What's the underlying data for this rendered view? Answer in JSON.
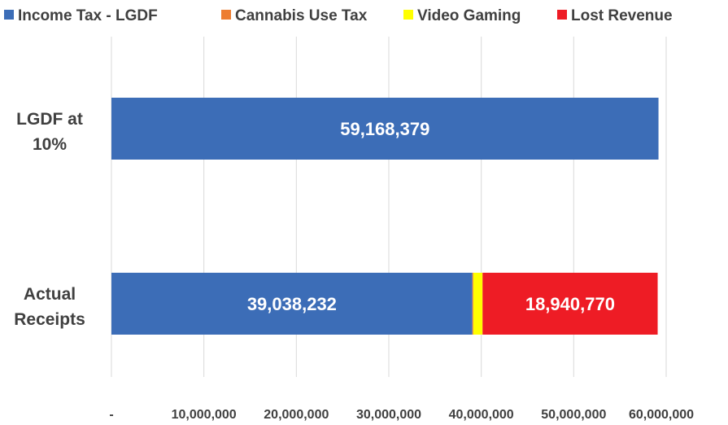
{
  "chart_data": {
    "type": "bar",
    "orientation": "horizontal",
    "stacked": true,
    "title": "",
    "xlabel": "",
    "ylabel": "",
    "xlim": [
      0,
      60000000
    ],
    "grid": "vertical",
    "legend_position": "top",
    "categories": [
      "LGDF at 10%",
      "Actual Receipts"
    ],
    "category_lines": [
      [
        "LGDF at",
        "10%"
      ],
      [
        "Actual",
        "Receipts"
      ]
    ],
    "x_ticks": [
      0,
      10000000,
      20000000,
      30000000,
      40000000,
      50000000,
      60000000
    ],
    "x_tick_labels": [
      "-",
      "10,000,000",
      "20,000,000",
      "30,000,000",
      "40,000,000",
      "50,000,000",
      "60,000,000"
    ],
    "series": [
      {
        "name": "Income Tax - LGDF",
        "color": "#3C6DB7",
        "values": [
          59168379,
          39038232
        ],
        "labels": [
          "59,168,379",
          "39,038,232"
        ]
      },
      {
        "name": "Cannabis Use Tax",
        "color": "#ED7D31",
        "values": [
          0,
          100000
        ],
        "labels": [
          "",
          ""
        ]
      },
      {
        "name": "Video Gaming",
        "color": "#FFFF00",
        "values": [
          0,
          1000000
        ],
        "labels": [
          "",
          ""
        ]
      },
      {
        "name": "Lost Revenue",
        "color": "#EE1C25",
        "values": [
          0,
          18940770
        ],
        "labels": [
          "",
          "18,940,770"
        ]
      }
    ]
  }
}
